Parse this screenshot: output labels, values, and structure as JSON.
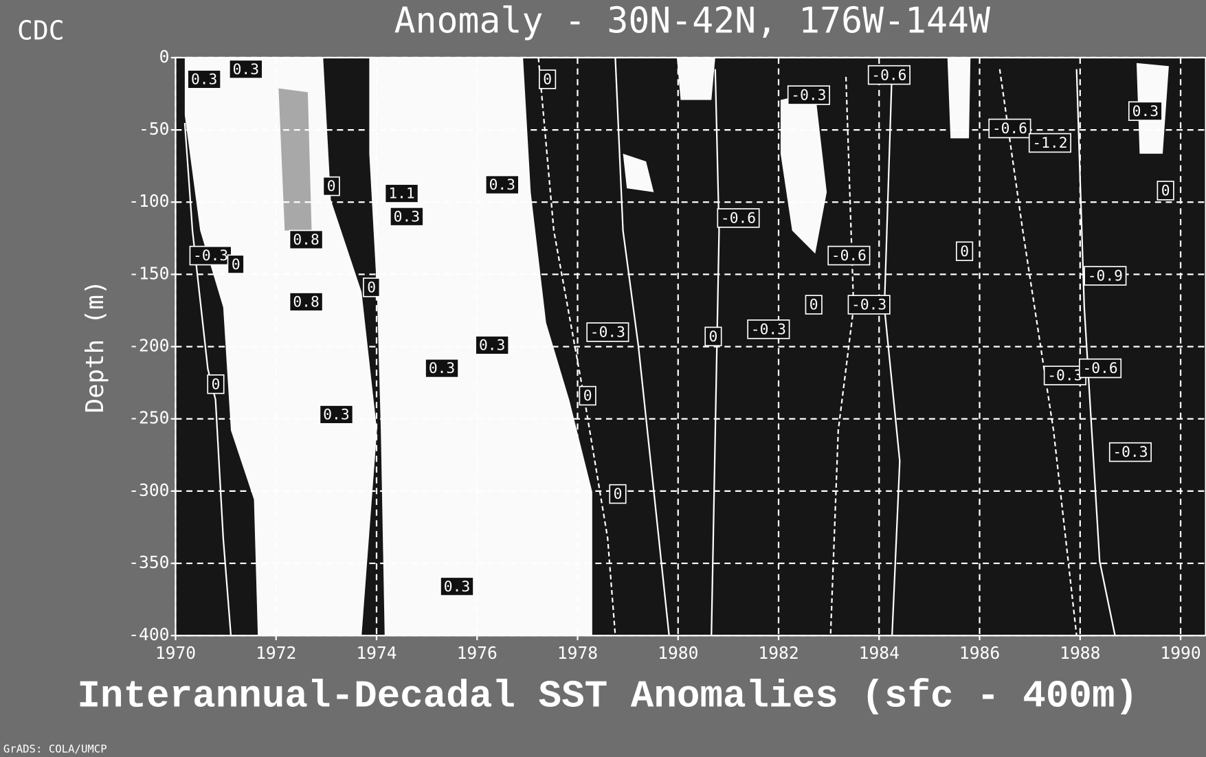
{
  "chart_data": {
    "type": "contour",
    "corner_label": "CDC",
    "title": "Anomaly - 30N-42N, 176W-144W",
    "ylabel": "Depth (m)",
    "caption": "Interannual-Decadal SST Anomalies (sfc - 400m)",
    "footer": "GrADS: COLA/UMCP",
    "xlim": [
      1970,
      1990.5
    ],
    "xticks": [
      1970,
      1972,
      1974,
      1976,
      1978,
      1980,
      1982,
      1984,
      1986,
      1988,
      1990
    ],
    "ylim": [
      -400,
      0
    ],
    "yticks": [
      0,
      -50,
      -100,
      -150,
      -200,
      -250,
      -300,
      -350,
      -400
    ],
    "grid": true,
    "contour_labels": [
      {
        "x": 1970.57,
        "y": -15,
        "value": 0.3
      },
      {
        "x": 1971.4,
        "y": -8,
        "value": 0.3
      },
      {
        "x": 1970.7,
        "y": -137,
        "value": -0.3
      },
      {
        "x": 1971.2,
        "y": -143,
        "value": 0
      },
      {
        "x": 1970.8,
        "y": -226,
        "value": 0
      },
      {
        "x": 1972.6,
        "y": -126,
        "value": 0.8
      },
      {
        "x": 1972.6,
        "y": -169,
        "value": 0.8
      },
      {
        "x": 1973.1,
        "y": -89,
        "value": 0
      },
      {
        "x": 1973.2,
        "y": -247,
        "value": 0.3
      },
      {
        "x": 1973.9,
        "y": -159,
        "value": 0
      },
      {
        "x": 1974.5,
        "y": -94,
        "value": 1.1
      },
      {
        "x": 1974.6,
        "y": -110,
        "value": 0.3
      },
      {
        "x": 1976.5,
        "y": -88,
        "value": 0.3
      },
      {
        "x": 1976.3,
        "y": -199,
        "value": 0.3
      },
      {
        "x": 1975.3,
        "y": -215,
        "value": 0.3
      },
      {
        "x": 1975.6,
        "y": -366,
        "value": 0.3
      },
      {
        "x": 1977.4,
        "y": -15,
        "value": 0
      },
      {
        "x": 1978.6,
        "y": -190,
        "value": -0.3
      },
      {
        "x": 1978.2,
        "y": -234,
        "value": 0
      },
      {
        "x": 1978.8,
        "y": -302,
        "value": 0
      },
      {
        "x": 1981.2,
        "y": -111,
        "value": -0.6
      },
      {
        "x": 1980.7,
        "y": -193,
        "value": 0
      },
      {
        "x": 1982.6,
        "y": -26,
        "value": -0.3
      },
      {
        "x": 1981.8,
        "y": -188,
        "value": -0.3
      },
      {
        "x": 1983.4,
        "y": -137,
        "value": -0.6
      },
      {
        "x": 1982.7,
        "y": -171,
        "value": 0
      },
      {
        "x": 1983.8,
        "y": -171,
        "value": -0.3
      },
      {
        "x": 1984.2,
        "y": -12,
        "value": -0.6
      },
      {
        "x": 1985.7,
        "y": -134,
        "value": 0
      },
      {
        "x": 1986.6,
        "y": -49,
        "value": -0.6
      },
      {
        "x": 1987.4,
        "y": -59,
        "value": -1.2
      },
      {
        "x": 1989.3,
        "y": -37,
        "value": 0.3
      },
      {
        "x": 1988.5,
        "y": -151,
        "value": -0.9
      },
      {
        "x": 1987.7,
        "y": -220,
        "value": -0.3
      },
      {
        "x": 1988.4,
        "y": -215,
        "value": -0.6
      },
      {
        "x": 1989.0,
        "y": -273,
        "value": -0.3
      },
      {
        "x": 1989.7,
        "y": -92,
        "value": 0
      }
    ]
  }
}
